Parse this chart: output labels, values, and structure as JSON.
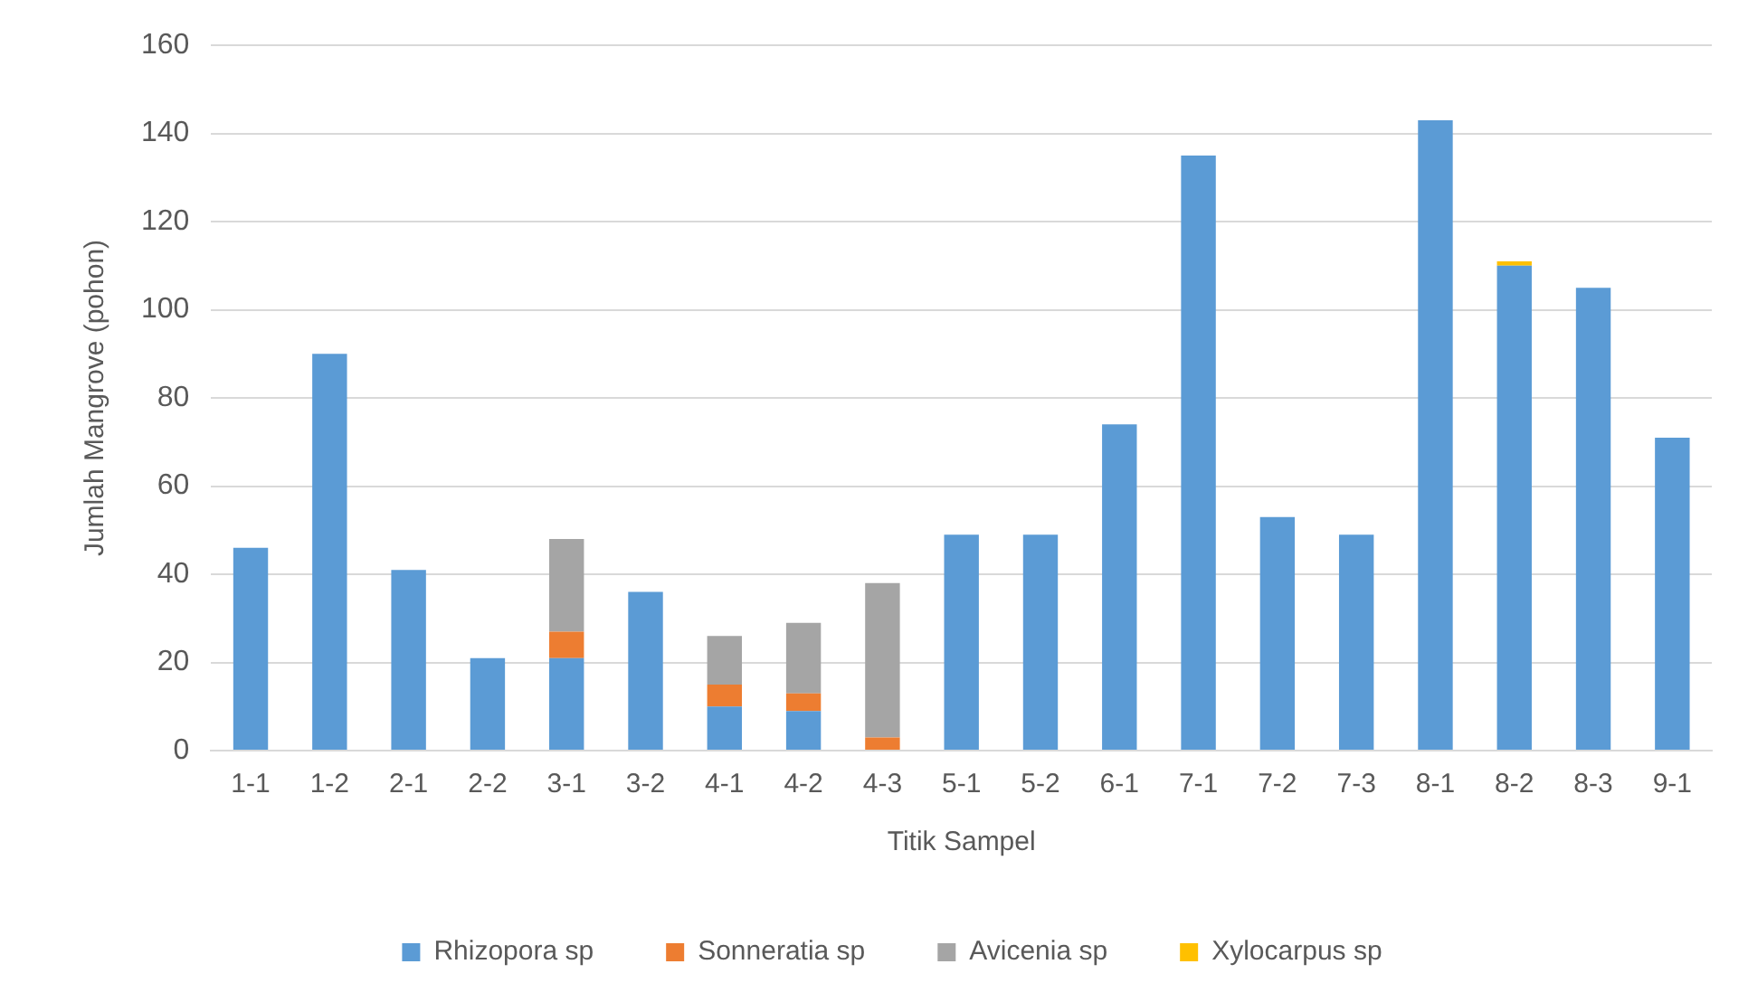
{
  "chart_data": {
    "type": "bar",
    "stacked": true,
    "xlabel": "Titik Sampel",
    "ylabel": "Jumlah Mangrove (pohon)",
    "categories": [
      "1-1",
      "1-2",
      "2-1",
      "2-2",
      "3-1",
      "3-2",
      "4-1",
      "4-2",
      "4-3",
      "5-1",
      "5-2",
      "6-1",
      "7-1",
      "7-2",
      "7-3",
      "8-1",
      "8-2",
      "8-3",
      "9-1"
    ],
    "series": [
      {
        "name": "Rhizopora sp",
        "color": "#5b9bd5",
        "values": [
          46,
          90,
          41,
          21,
          21,
          36,
          10,
          9,
          0,
          49,
          49,
          74,
          135,
          53,
          49,
          143,
          110,
          105,
          71
        ]
      },
      {
        "name": "Sonneratia sp",
        "color": "#ed7d31",
        "values": [
          0,
          0,
          0,
          0,
          6,
          0,
          5,
          4,
          3,
          0,
          0,
          0,
          0,
          0,
          0,
          0,
          0,
          0,
          0
        ]
      },
      {
        "name": "Avicenia sp",
        "color": "#a5a5a5",
        "values": [
          0,
          0,
          0,
          0,
          21,
          0,
          11,
          16,
          35,
          0,
          0,
          0,
          0,
          0,
          0,
          0,
          0,
          0,
          0
        ]
      },
      {
        "name": "Xylocarpus sp",
        "color": "#ffc000",
        "values": [
          0,
          0,
          0,
          0,
          0,
          0,
          0,
          0,
          0,
          0,
          0,
          0,
          0,
          0,
          0,
          0,
          1,
          0,
          0
        ]
      }
    ],
    "ylim": [
      0,
      160
    ],
    "yticks": [
      0,
      20,
      40,
      60,
      80,
      100,
      120,
      140,
      160
    ],
    "grid": "y",
    "legend": "bottom"
  }
}
